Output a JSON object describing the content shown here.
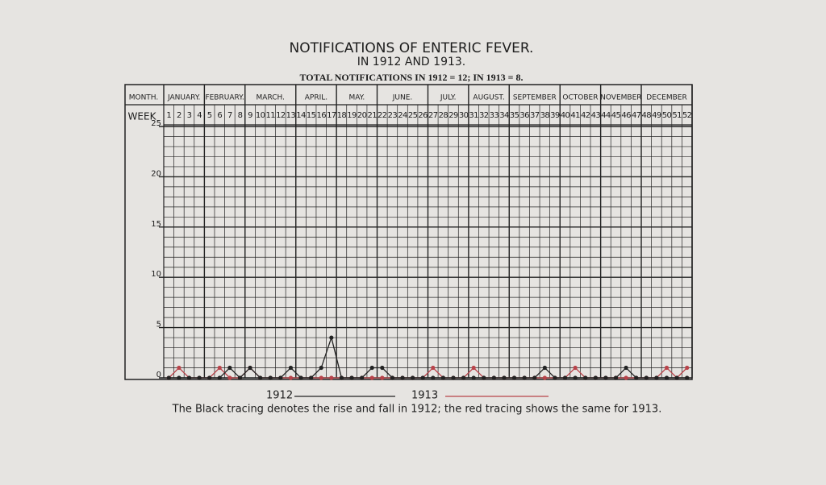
{
  "chart_data": {
    "type": "line",
    "title": "NOTIFICATIONS OF ENTERIC FEVER.",
    "subtitle": "IN 1912 AND 1913.",
    "totals_text": "TOTAL NOTIFICATIONS IN 1912 = 12; IN 1913 = 8.",
    "month_header": "MONTH.",
    "x_label": "WEEK",
    "months": [
      "JANUARY.",
      "FEBRUARY.",
      "MARCH.",
      "APRIL.",
      "MAY.",
      "JUNE.",
      "JULY.",
      "AUGUST.",
      "SEPTEMBER",
      "OCTOBER",
      "NOVEMBER",
      "DECEMBER"
    ],
    "categories": [
      1,
      2,
      3,
      4,
      5,
      6,
      7,
      8,
      9,
      10,
      11,
      12,
      13,
      14,
      15,
      16,
      17,
      18,
      19,
      20,
      21,
      22,
      23,
      24,
      25,
      26,
      27,
      28,
      29,
      30,
      31,
      32,
      33,
      34,
      35,
      36,
      37,
      38,
      39,
      40,
      41,
      42,
      43,
      44,
      45,
      46,
      47,
      48,
      49,
      50,
      51,
      52
    ],
    "series": [
      {
        "name": "1912",
        "color": "#222222",
        "values": [
          0,
          0,
          0,
          0,
          0,
          0,
          1,
          0,
          1,
          0,
          0,
          0,
          1,
          0,
          0,
          1,
          4,
          0,
          0,
          0,
          1,
          1,
          0,
          0,
          0,
          0,
          0,
          0,
          0,
          0,
          0,
          0,
          0,
          0,
          0,
          0,
          0,
          1,
          0,
          0,
          0,
          0,
          0,
          0,
          0,
          1,
          0,
          0,
          0,
          0,
          0,
          0
        ]
      },
      {
        "name": "1913",
        "color": "#b8434a",
        "values": [
          0,
          1,
          0,
          0,
          0,
          1,
          0,
          0,
          1,
          0,
          0,
          0,
          0,
          0,
          0,
          0,
          0,
          0,
          0,
          0,
          0,
          0,
          0,
          0,
          0,
          0,
          1,
          0,
          0,
          0,
          1,
          0,
          0,
          0,
          0,
          0,
          0,
          0,
          0,
          0,
          1,
          0,
          0,
          0,
          0,
          0,
          0,
          0,
          0,
          1,
          0,
          1
        ]
      }
    ],
    "ylim": [
      0,
      25
    ],
    "yticks": [
      0,
      5,
      10,
      15,
      20,
      25
    ],
    "caption": "The Black tracing denotes the rise and fall in 1912; the red tracing shows the same for 1913."
  }
}
